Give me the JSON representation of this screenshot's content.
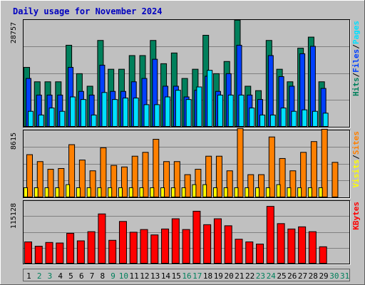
{
  "title": "Daily usage for November 2024",
  "colors": {
    "background": "#c0c0c0",
    "title": "#0000c0",
    "hits": "#00805c",
    "files": "#0040ff",
    "pages": "#00e0ff",
    "visits": "#ffff00",
    "sites": "#ff8000",
    "kbytes": "#ff0000",
    "weekday_label": "#000000",
    "weekend_label": "#00805c"
  },
  "legend": {
    "top": [
      {
        "text": "Hits",
        "color": "#00805c"
      },
      {
        "text": "/",
        "color": "#000000"
      },
      {
        "text": "Files",
        "color": "#0040ff"
      },
      {
        "text": "/",
        "color": "#000000"
      },
      {
        "text": "Pages",
        "color": "#00e0ff"
      }
    ],
    "middle": [
      {
        "text": "Visits",
        "color": "#ffff00"
      },
      {
        "text": "/",
        "color": "#000000"
      },
      {
        "text": "Sites",
        "color": "#ff8000"
      }
    ],
    "bottom": [
      {
        "text": "KBytes",
        "color": "#ff0000"
      }
    ]
  },
  "chart_data": [
    {
      "type": "bar",
      "panel": "top",
      "ymax_label": "28757",
      "ylim": [
        0,
        28757
      ],
      "categories": [
        "1",
        "2",
        "3",
        "4",
        "5",
        "6",
        "7",
        "8",
        "9",
        "10",
        "11",
        "12",
        "13",
        "14",
        "15",
        "16",
        "17",
        "18",
        "19",
        "20",
        "21",
        "22",
        "23",
        "24",
        "25",
        "26",
        "27",
        "28",
        "29",
        "30",
        "31"
      ],
      "weekend_days": [
        "2",
        "3",
        "9",
        "10",
        "16",
        "17",
        "23",
        "24",
        "30",
        "31"
      ],
      "series": [
        {
          "name": "Hits",
          "values": [
            16200,
            12300,
            12300,
            12300,
            22200,
            14500,
            11100,
            23500,
            15700,
            15700,
            19400,
            19400,
            23500,
            17200,
            20100,
            13200,
            15700,
            24900,
            14500,
            17800,
            29000,
            11100,
            9900,
            23500,
            15700,
            12300,
            21400,
            24400,
            12300,
            0,
            0
          ]
        },
        {
          "name": "Files",
          "values": [
            13200,
            8700,
            8700,
            8700,
            16200,
            9700,
            8700,
            16800,
            9700,
            9700,
            12300,
            13200,
            18400,
            11100,
            11100,
            8200,
            10000,
            13800,
            9700,
            14500,
            22200,
            8700,
            7500,
            19400,
            13700,
            11100,
            19900,
            21900,
            10500,
            0,
            0
          ]
        },
        {
          "name": "Pages",
          "values": [
            4300,
            3300,
            5200,
            4300,
            8200,
            7500,
            3300,
            9400,
            7500,
            7900,
            7900,
            6100,
            6100,
            8200,
            10000,
            7500,
            10900,
            15400,
            8700,
            8700,
            8700,
            5200,
            3300,
            3300,
            5200,
            4300,
            4700,
            4300,
            3800,
            0,
            0
          ]
        }
      ]
    },
    {
      "type": "bar",
      "panel": "middle",
      "ymax_label": "8615",
      "ylim": [
        0,
        8615
      ],
      "categories": [
        "1",
        "2",
        "3",
        "4",
        "5",
        "6",
        "7",
        "8",
        "9",
        "10",
        "11",
        "12",
        "13",
        "14",
        "15",
        "16",
        "17",
        "18",
        "19",
        "20",
        "21",
        "22",
        "23",
        "24",
        "25",
        "26",
        "27",
        "28",
        "29",
        "30",
        "31"
      ],
      "series": [
        {
          "name": "Visits",
          "values": [
            1300,
            1300,
            1300,
            1300,
            1700,
            1300,
            1300,
            1300,
            1300,
            1300,
            1300,
            1300,
            1300,
            1300,
            1300,
            1300,
            1700,
            1700,
            1300,
            1300,
            1300,
            1300,
            1300,
            1300,
            1700,
            1300,
            1300,
            1300,
            1300,
            0,
            0
          ]
        },
        {
          "name": "Sites",
          "values": [
            5600,
            4700,
            3700,
            3800,
            6900,
            4900,
            3500,
            6500,
            4200,
            4000,
            5400,
            5900,
            7600,
            4700,
            4700,
            3000,
            3700,
            5400,
            5400,
            3500,
            9000,
            3000,
            3000,
            7900,
            5100,
            3500,
            5900,
            7300,
            8900,
            4600,
            0
          ]
        }
      ]
    },
    {
      "type": "bar",
      "panel": "bottom",
      "ymax_label": "115128",
      "ylim": [
        0,
        115128
      ],
      "categories": [
        "1",
        "2",
        "3",
        "4",
        "5",
        "6",
        "7",
        "8",
        "9",
        "10",
        "11",
        "12",
        "13",
        "14",
        "15",
        "16",
        "17",
        "18",
        "19",
        "20",
        "21",
        "22",
        "23",
        "24",
        "25",
        "26",
        "27",
        "28",
        "29",
        "30",
        "31"
      ],
      "series": [
        {
          "name": "KBytes",
          "values": [
            41000,
            33000,
            40000,
            39000,
            57000,
            43000,
            60000,
            93000,
            44000,
            79000,
            59000,
            64000,
            54000,
            65000,
            84000,
            64000,
            98000,
            73000,
            84000,
            71000,
            46000,
            41000,
            37000,
            107000,
            75000,
            65000,
            69000,
            60000,
            32000,
            0,
            0
          ]
        }
      ]
    }
  ]
}
